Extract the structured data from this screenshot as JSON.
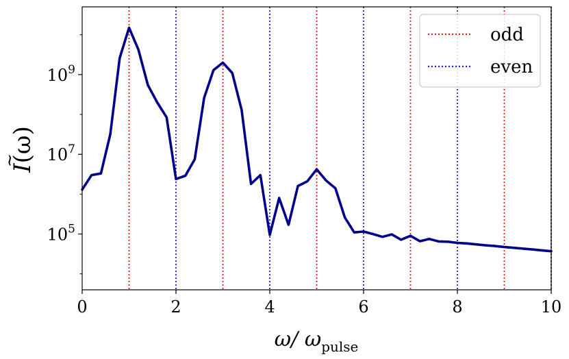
{
  "chart_data": {
    "type": "line",
    "title": "",
    "xlabel": {
      "main": "ω/ ω",
      "sub": "pulse"
    },
    "ylabel": {
      "main": "Ĩ(ω)",
      "base": "I",
      "arg": "(ω)"
    },
    "xlim": [
      0,
      10
    ],
    "ylim_log10": [
      3.6,
      10.7
    ],
    "yscale": "log",
    "grid": false,
    "legend_position": "top-right",
    "x_ticks": [
      0,
      2,
      4,
      6,
      8,
      10
    ],
    "y_ticks": [
      {
        "base": "10",
        "exp": "5",
        "log10": 5
      },
      {
        "base": "10",
        "exp": "7",
        "log10": 7
      },
      {
        "base": "10",
        "exp": "9",
        "log10": 9
      }
    ],
    "series": [
      {
        "color": "#00008b",
        "x": [
          0,
          0.2,
          0.4,
          0.6,
          0.8,
          1.0,
          1.2,
          1.4,
          1.6,
          1.8,
          2.0,
          2.2,
          2.4,
          2.6,
          2.8,
          3.0,
          3.2,
          3.4,
          3.6,
          3.8,
          4.0,
          4.2,
          4.4,
          4.6,
          4.8,
          5.0,
          5.2,
          5.4,
          5.6,
          5.8,
          6.0,
          6.2,
          6.4,
          6.6,
          6.8,
          7.0,
          7.2,
          7.4,
          7.6,
          7.8,
          8.0,
          8.2,
          8.4,
          8.6,
          8.8,
          9.0,
          9.2,
          9.4,
          9.6,
          9.8,
          10.0
        ],
        "y": [
          1300000.0,
          3000000.0,
          3300000.0,
          32000000.0,
          2600000000.0,
          15000000000.0,
          4200000000.0,
          550000000.0,
          200000000.0,
          85000000.0,
          2400000.0,
          2900000.0,
          7500000.0,
          260000000.0,
          1300000000.0,
          2000000000.0,
          1100000000.0,
          130000000.0,
          1800000.0,
          3000000.0,
          95000.0,
          800000.0,
          170000.0,
          1600000.0,
          2100000.0,
          4200000.0,
          2200000.0,
          1400000.0,
          260000.0,
          110000.0,
          115000.0,
          100000.0,
          85000.0,
          98000.0,
          72000.0,
          90000.0,
          66000.0,
          75000.0,
          65000.0,
          64000.0,
          60000.0,
          58000.0,
          55000.0,
          52000.0,
          50000.0,
          47000.0,
          45000.0,
          43000.0,
          41000.0,
          39000.0,
          37000.0
        ]
      }
    ],
    "vlines": [
      {
        "name": "odd",
        "color": "#e41a1c",
        "x": [
          1,
          3,
          5,
          7,
          9
        ]
      },
      {
        "name": "even",
        "color": "#1f1fd1",
        "x": [
          2,
          4,
          6,
          8,
          10
        ]
      }
    ]
  }
}
